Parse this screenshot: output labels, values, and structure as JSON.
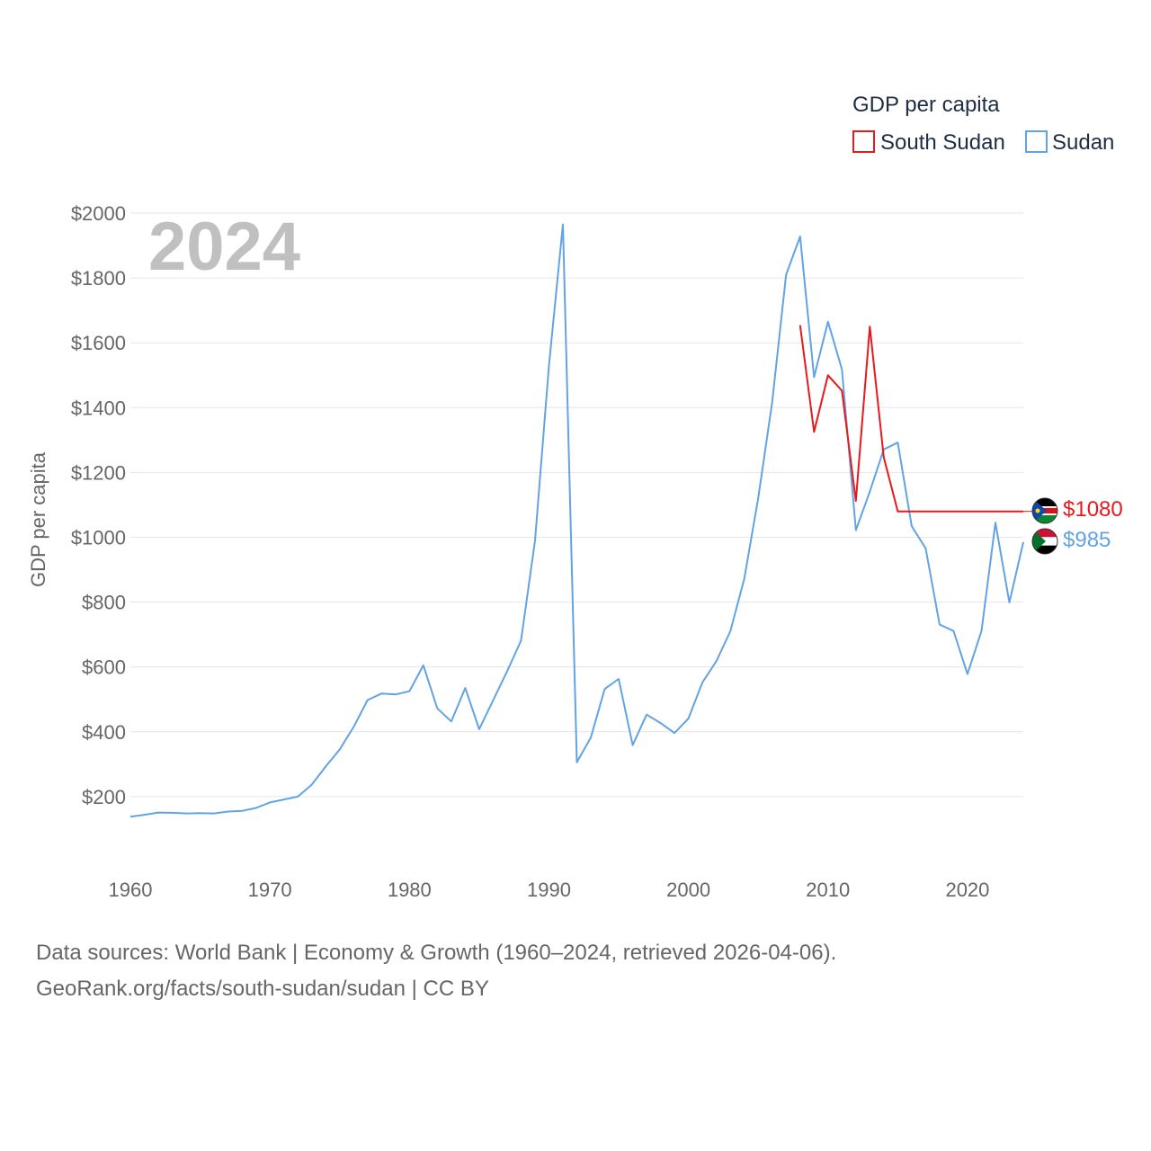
{
  "chart_data": {
    "type": "line",
    "title": "GDP per capita",
    "ylabel": "GDP per capita",
    "xlabel": "",
    "year_label": "2024",
    "xlim": [
      1960,
      2024
    ],
    "ylim": [
      0,
      2000
    ],
    "x_ticks": [
      "1960",
      "1970",
      "1980",
      "1990",
      "2000",
      "2010",
      "2020"
    ],
    "y_ticks": [
      "$200",
      "$400",
      "$600",
      "$800",
      "$1000",
      "$1200",
      "$1400",
      "$1600",
      "$1800",
      "$2000"
    ],
    "legend_title": "GDP per capita",
    "legend_position": "top-right",
    "series": [
      {
        "name": "South Sudan",
        "color": "#e8191c",
        "end_label": "$1080",
        "x": [
          2008,
          2009,
          2010,
          2011,
          2012,
          2013,
          2014,
          2015,
          2024
        ],
        "values": [
          1654,
          1325,
          1500,
          1452,
          1112,
          1650,
          1247,
          1080,
          1080
        ]
      },
      {
        "name": "Sudan",
        "color": "#62a3e3",
        "end_label": "$985",
        "x": [
          1960,
          1961,
          1962,
          1963,
          1964,
          1965,
          1966,
          1967,
          1968,
          1969,
          1970,
          1971,
          1972,
          1973,
          1974,
          1975,
          1976,
          1977,
          1978,
          1979,
          1980,
          1981,
          1982,
          1983,
          1984,
          1985,
          1986,
          1987,
          1988,
          1989,
          1990,
          1991,
          1992,
          1993,
          1994,
          1995,
          1996,
          1997,
          1998,
          1999,
          2000,
          2001,
          2002,
          2003,
          2004,
          2005,
          2006,
          2007,
          2008,
          2009,
          2010,
          2011,
          2012,
          2013,
          2014,
          2015,
          2016,
          2017,
          2018,
          2019,
          2020,
          2021,
          2022,
          2023,
          2024
        ],
        "values": [
          138,
          144,
          151,
          150,
          148,
          149,
          148,
          154,
          156,
          165,
          182,
          191,
          200,
          237,
          293,
          345,
          415,
          498,
          518,
          515,
          525,
          605,
          472,
          432,
          535,
          408,
          497,
          586,
          681,
          990,
          1530,
          1965,
          306,
          382,
          532,
          563,
          359,
          453,
          427,
          396,
          441,
          552,
          618,
          710,
          872,
          1121,
          1416,
          1810,
          1928,
          1494,
          1665,
          1518,
          1022,
          1141,
          1271,
          1292,
          1034,
          966,
          731,
          711,
          578,
          711,
          1045,
          799,
          985
        ]
      }
    ]
  },
  "footer": {
    "line1": "Data sources: World Bank | Economy & Growth (1960–2024, retrieved 2026-04-06).",
    "line2": "GeoRank.org/facts/south-sudan/sudan | CC BY"
  }
}
